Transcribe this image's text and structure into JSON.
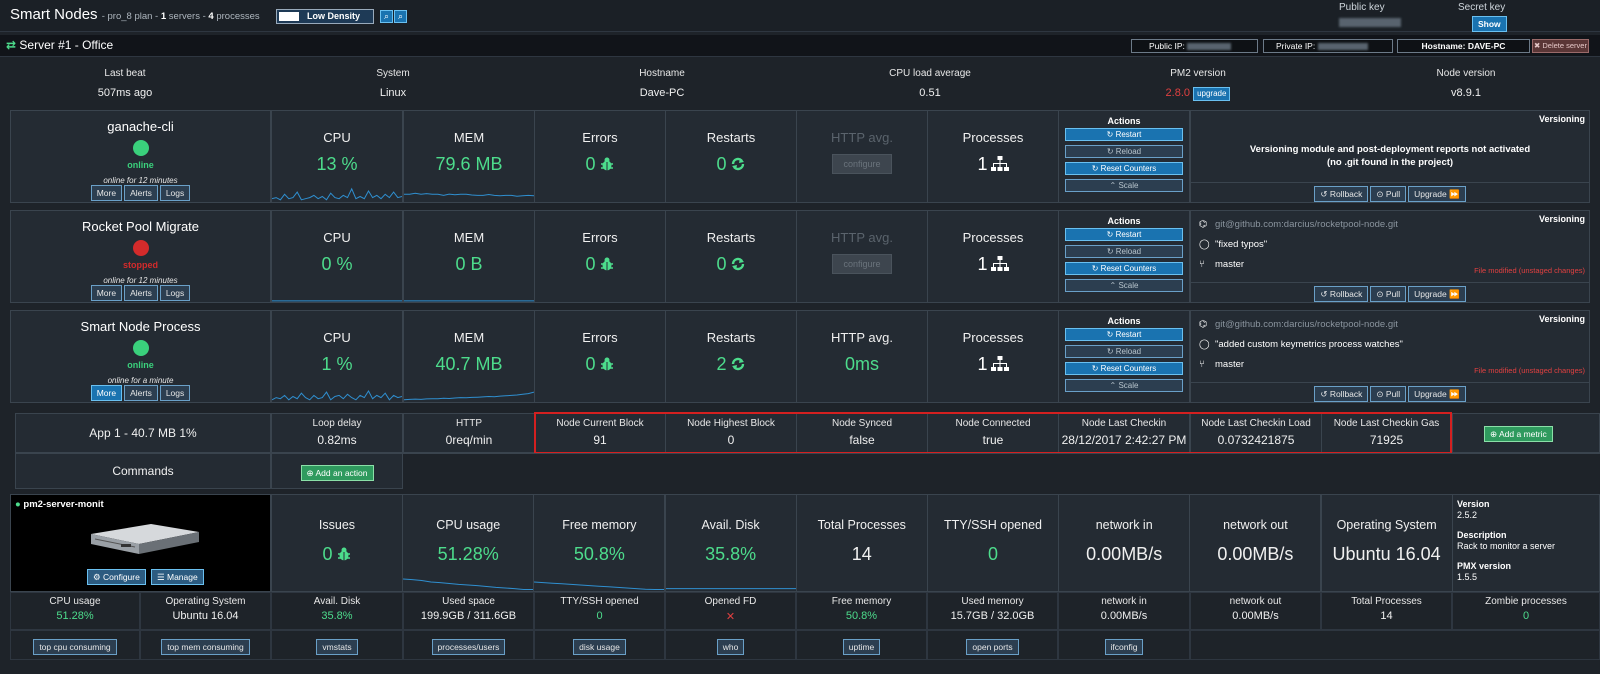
{
  "header": {
    "title": "Smart Nodes",
    "plan_prefix": " - pro_8 plan - ",
    "servers_count": "1",
    "servers_suffix": " servers - ",
    "processes_count": "4",
    "processes_suffix": " processes",
    "density_label": "Low Density",
    "public_key_label": "Public key",
    "secret_key_label": "Secret key",
    "show_label": "Show"
  },
  "server": {
    "title": "Server #1 - Office",
    "public_ip_label": "Public IP:",
    "private_ip_label": "Private IP:",
    "hostname_tag": "Hostname: DAVE-PC",
    "delete_label": "Delete server",
    "info": [
      {
        "label": "Last beat",
        "value": "507ms ago"
      },
      {
        "label": "System",
        "value": "Linux"
      },
      {
        "label": "Hostname",
        "value": "Dave-PC"
      },
      {
        "label": "CPU load average",
        "value": "0.51"
      },
      {
        "label": "PM2 version",
        "value": "2.8.0"
      },
      {
        "label": "Node version",
        "value": "v8.9.1"
      }
    ],
    "upgrade_label": "upgrade"
  },
  "processes": [
    {
      "name": "ganache-cli",
      "status": "online",
      "status_color": "#3ad07c",
      "uptime": "online for 12 minutes",
      "cpu": "13 %",
      "mem": "79.6 MB",
      "errors": "0",
      "restarts": "0",
      "http": "configure",
      "procs": "1",
      "versioning_msg1": "Versioning module and post-deployment reports not activated",
      "versioning_msg2": "(no .git found in the project)"
    },
    {
      "name": "Rocket Pool Migrate",
      "status": "stopped",
      "status_color": "#d42b2b",
      "uptime": "online for 12 minutes",
      "cpu": "0 %",
      "mem": "0 B",
      "errors": "0",
      "restarts": "0",
      "http": "configure",
      "procs": "1",
      "repo": "git@github.com:darcius/rocketpool-node.git",
      "commit": "\"fixed typos\"",
      "branch": "master",
      "modified": "File modified (unstaged changes)"
    },
    {
      "name": "Smart Node Process",
      "status": "online",
      "status_color": "#3ad07c",
      "uptime": "online for a minute",
      "cpu": "1 %",
      "mem": "40.7 MB",
      "errors": "0",
      "restarts": "2",
      "http": "0ms",
      "procs": "1",
      "repo": "git@github.com:darcius/rocketpool-node.git",
      "commit": "\"added custom keymetrics process watches\"",
      "branch": "master",
      "modified": "File modified (unstaged changes)"
    }
  ],
  "labels": {
    "cpu": "CPU",
    "mem": "MEM",
    "errors": "Errors",
    "restarts": "Restarts",
    "http": "HTTP avg.",
    "processes": "Processes",
    "actions": "Actions",
    "restart": "Restart",
    "reload": "Reload",
    "reset": "Reset Counters",
    "scale": "Scale",
    "versioning": "Versioning",
    "rollback": "Rollback",
    "pull": "Pull",
    "upgrade": "Upgrade",
    "more": "More",
    "alerts": "Alerts",
    "logs": "Logs"
  },
  "metrics": {
    "app_label": "App 1 - 40.7 MB 1%",
    "items": [
      {
        "label": "Loop delay",
        "value": "0.82ms"
      },
      {
        "label": "HTTP",
        "value": "0req/min"
      },
      {
        "label": "Node Current Block",
        "value": "91"
      },
      {
        "label": "Node Highest Block",
        "value": "0"
      },
      {
        "label": "Node Synced",
        "value": "false"
      },
      {
        "label": "Node Connected",
        "value": "true"
      },
      {
        "label": "Node Last Checkin",
        "value": "28/12/2017 2:42:27 PM"
      },
      {
        "label": "Node Last Checkin Load",
        "value": "0.0732421875"
      },
      {
        "label": "Node Last Checkin Gas",
        "value": "71925"
      }
    ],
    "add_metric": "Add a metric",
    "commands_label": "Commands",
    "add_action": "Add an action"
  },
  "monit": {
    "name": "pm2-server-monit",
    "configure": "Configure",
    "manage": "Manage",
    "tiles": [
      {
        "label": "Issues",
        "value": "0"
      },
      {
        "label": "CPU usage",
        "value": "51.28%"
      },
      {
        "label": "Free memory",
        "value": "50.8%"
      },
      {
        "label": "Avail. Disk",
        "value": "35.8%"
      },
      {
        "label": "Total Processes",
        "value": "14"
      },
      {
        "label": "TTY/SSH opened",
        "value": "0"
      },
      {
        "label": "network in",
        "value": "0.00MB/s"
      },
      {
        "label": "network out",
        "value": "0.00MB/s"
      },
      {
        "label": "Operating System",
        "value": "Ubuntu 16.04"
      }
    ],
    "version_label": "Version",
    "version": "2.5.2",
    "description_label": "Description",
    "description": "Rack to monitor a server",
    "pmx_label": "PMX version",
    "pmx": "1.5.5",
    "details": [
      {
        "label": "CPU usage",
        "value": "51.28%"
      },
      {
        "label": "Operating System",
        "value": "Ubuntu 16.04"
      },
      {
        "label": "Avail. Disk",
        "value": "35.8%"
      },
      {
        "label": "Used space",
        "value": "199.9GB / 311.6GB"
      },
      {
        "label": "TTY/SSH opened",
        "value": "0"
      },
      {
        "label": "Opened FD",
        "value": "✕"
      },
      {
        "label": "Free memory",
        "value": "50.8%"
      },
      {
        "label": "Used memory",
        "value": "15.7GB / 32.0GB"
      },
      {
        "label": "network in",
        "value": "0.00MB/s"
      },
      {
        "label": "network out",
        "value": "0.00MB/s"
      },
      {
        "label": "Total Processes",
        "value": "14"
      },
      {
        "label": "Zombie processes",
        "value": "0"
      }
    ],
    "buttons": [
      "top cpu consuming",
      "top mem consuming",
      "vmstats",
      "processes/users",
      "disk usage",
      "who",
      "uptime",
      "open ports",
      "ifconfig"
    ]
  },
  "colors": {
    "accent_green": "#4ddc8c",
    "stopped_red": "#d42b2b",
    "highlight_box": "#d42020",
    "chart_blue": "#2f8fd0"
  }
}
